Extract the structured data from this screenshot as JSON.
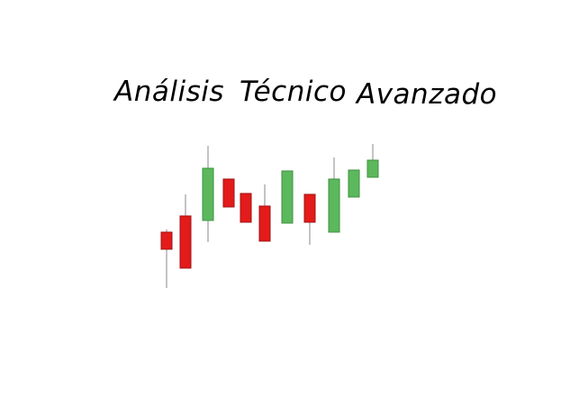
{
  "title": {
    "words": [
      "Análisis",
      "Técnico",
      "Avanzado"
    ]
  },
  "colors": {
    "bullish_fill": "#5cb85c",
    "bullish_stroke": "#3f8f3f",
    "bearish_fill": "#e41b1b",
    "bearish_stroke": "#a01010",
    "wick": "#888888"
  },
  "chart_data": {
    "type": "candlestick",
    "title": "",
    "xlabel": "",
    "ylabel": "",
    "grid": false,
    "candles": [
      {
        "direction": "down",
        "open": 62,
        "close": 43,
        "high": 65,
        "low": 0
      },
      {
        "direction": "down",
        "open": 80,
        "close": 22,
        "high": 104,
        "low": 22
      },
      {
        "direction": "up",
        "open": 75,
        "close": 133,
        "high": 158,
        "low": 51
      },
      {
        "direction": "down",
        "open": 121,
        "close": 90,
        "high": 121,
        "low": 90
      },
      {
        "direction": "down",
        "open": 105,
        "close": 73,
        "high": 105,
        "low": 73
      },
      {
        "direction": "down",
        "open": 91,
        "close": 52,
        "high": 115,
        "low": 52
      },
      {
        "direction": "up",
        "open": 72,
        "close": 130,
        "high": 130,
        "low": 72
      },
      {
        "direction": "down",
        "open": 104,
        "close": 73,
        "high": 104,
        "low": 48
      },
      {
        "direction": "up",
        "open": 62,
        "close": 121,
        "high": 145,
        "low": 62
      },
      {
        "direction": "up",
        "open": 101,
        "close": 131,
        "high": 131,
        "low": 101
      },
      {
        "direction": "up",
        "open": 123,
        "close": 142,
        "high": 160,
        "low": 123
      }
    ],
    "ylim": [
      0,
      160
    ]
  }
}
